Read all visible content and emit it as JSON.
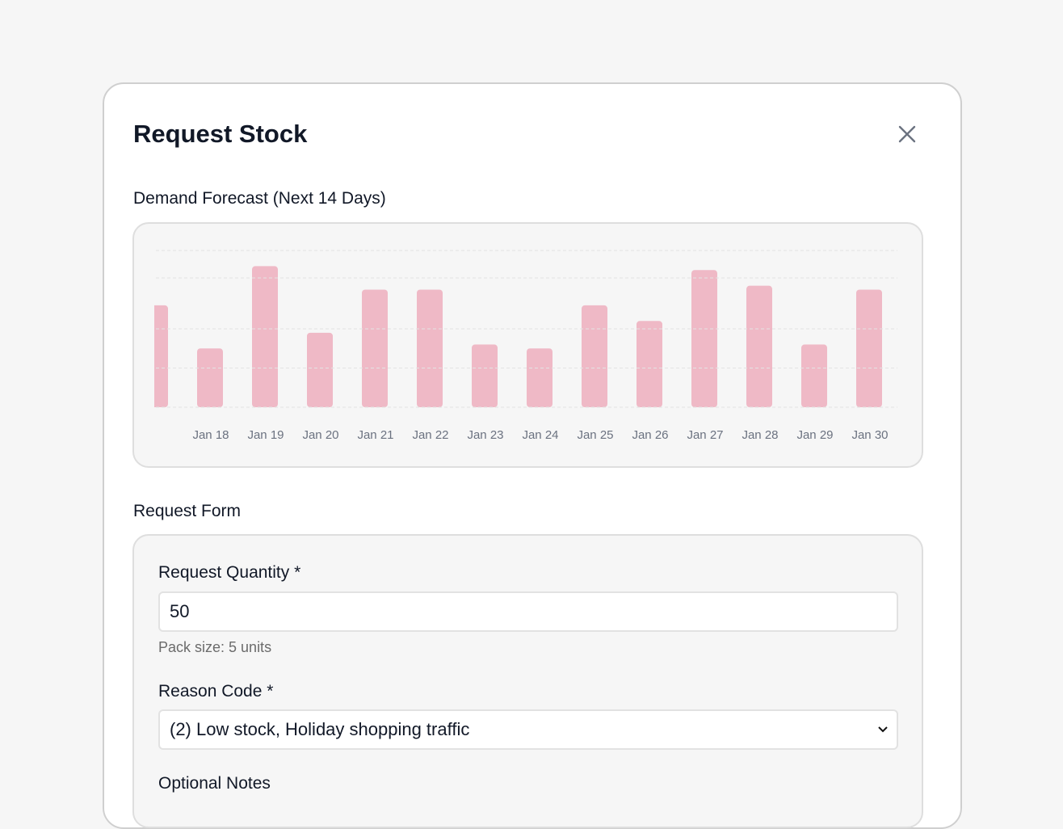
{
  "dialog": {
    "title": "Request Stock"
  },
  "chart_data": {
    "type": "bar",
    "title": "Demand Forecast (Next 14 Days)",
    "categories": [
      null,
      "Jan 18",
      "Jan 19",
      "Jan 20",
      "Jan 21",
      "Jan 22",
      "Jan 23",
      "Jan 24",
      "Jan 25",
      "Jan 26",
      "Jan 27",
      "Jan 28",
      "Jan 29",
      "Jan 30"
    ],
    "values": [
      26,
      15,
      36,
      19,
      30,
      30,
      16,
      15,
      26,
      22,
      35,
      31,
      16,
      30
    ],
    "color": "#efb9c6",
    "ylim": [
      0,
      40
    ],
    "yticks": [
      0,
      10,
      20,
      33,
      40
    ],
    "grid": true
  },
  "form": {
    "title": "Request Form",
    "fields": [
      {
        "label": "Request Quantity",
        "required_mark": "*",
        "value": "50",
        "hint": "Pack size: 5 units"
      },
      {
        "label": "Reason Code",
        "required_mark": "*",
        "value": "(2) Low stock, Holiday shopping traffic"
      },
      {
        "label": "Optional Notes"
      }
    ]
  }
}
